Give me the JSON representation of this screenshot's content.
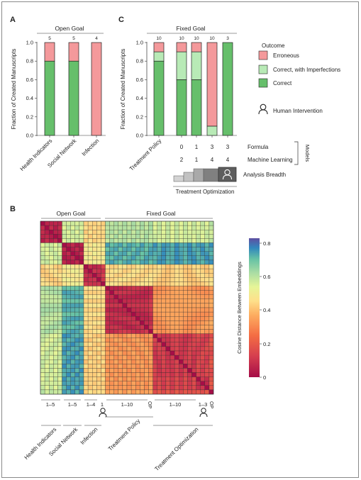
{
  "colors": {
    "erroneous": "#f4999b",
    "imperfect": "#b8eab6",
    "correct": "#66bf6b",
    "bar_outline": "#222222",
    "model_gray_light": "#d3d3d3",
    "model_gray_mid": "#a9a9a9",
    "model_gray_dark": "#808080",
    "model_gray_darkest": "#5e5e5e"
  },
  "panels": {
    "A": {
      "letter": "A",
      "title": "Open Goal"
    },
    "B": {
      "letter": "B",
      "top_left": "Open Goal",
      "top_right": "Fixed Goal"
    },
    "C": {
      "letter": "C",
      "title": "Fixed Goal"
    }
  },
  "legend": {
    "title": "Outcome",
    "items": [
      "Erroneous",
      "Correct, with Imperfections",
      "Correct"
    ],
    "human": "Human Intervention"
  },
  "models": {
    "formula_label": "Formula",
    "ml_label": "Machine Learning",
    "bracket_label": "Models",
    "breadth_label": "Analysis Breadth",
    "optimization_label": "Treatment Optimization"
  },
  "heatmap_labels": {
    "ranges": [
      "1–5",
      "1–5",
      "1–4",
      "1",
      "1–10",
      "OP",
      "1–10",
      "1–3",
      "OP"
    ],
    "groups": [
      "Health Indicators",
      "Social Network",
      "Infection",
      "Treatment Policy",
      "Treatment Optimization"
    ]
  },
  "colorbar": {
    "label": "Cosine Distance Between Embeddings",
    "ticks": [
      "0.8",
      "0.6",
      "0.4",
      "0.2",
      "0"
    ]
  },
  "chart_data": [
    {
      "type": "bar",
      "panel": "A",
      "title": "Open Goal",
      "ylabel": "Fraction of Created Manuscripts",
      "ylim": [
        0,
        1
      ],
      "yticks": [
        "0.0",
        "0.2",
        "0.4",
        "0.6",
        "0.8",
        "1.0"
      ],
      "categories": [
        "Health Indicators",
        "Social Network",
        "Infection"
      ],
      "counts": [
        "5",
        "5",
        "4"
      ],
      "series": [
        {
          "name": "Correct",
          "values": [
            0.8,
            0.8,
            0.0
          ]
        },
        {
          "name": "Correct, with Imperfections",
          "values": [
            0.0,
            0.0,
            0.0
          ]
        },
        {
          "name": "Erroneous",
          "values": [
            0.2,
            0.2,
            1.0
          ]
        }
      ]
    },
    {
      "type": "bar",
      "panel": "C",
      "title": "Fixed Goal",
      "ylabel": "Fraction of Created Manuscripts",
      "ylim": [
        0,
        1
      ],
      "yticks": [
        "0.0",
        "0.2",
        "0.4",
        "0.6",
        "0.8",
        "1.0"
      ],
      "categories": [
        "Treatment Policy",
        "",
        "",
        "",
        ""
      ],
      "counts": [
        "10",
        "10",
        "10",
        "10",
        "3"
      ],
      "formula": [
        "",
        "0",
        "1",
        "3",
        "3"
      ],
      "machine_learning": [
        "",
        "2",
        "1",
        "4",
        "4"
      ],
      "human_intervention": [
        false,
        false,
        false,
        false,
        true
      ],
      "series": [
        {
          "name": "Correct",
          "values": [
            0.8,
            0.6,
            0.6,
            0.0,
            1.0
          ]
        },
        {
          "name": "Correct, with Imperfections",
          "values": [
            0.1,
            0.3,
            0.3,
            0.1,
            0.0
          ]
        },
        {
          "name": "Erroneous",
          "values": [
            0.1,
            0.1,
            0.1,
            0.9,
            0.0
          ]
        }
      ]
    },
    {
      "type": "heatmap",
      "panel": "B",
      "colorbar_range": [
        0,
        0.85
      ],
      "groups": [
        {
          "name": "Health Indicators",
          "size": 5
        },
        {
          "name": "Social Network",
          "size": 5
        },
        {
          "name": "Infection",
          "size": 4
        },
        {
          "name": "Infection (human intervention)",
          "size": 1
        },
        {
          "name": "Treatment Policy",
          "size": 10
        },
        {
          "name": "Treatment Policy OP",
          "size": 1
        },
        {
          "name": "Treatment Optimization",
          "size": 10
        },
        {
          "name": "Treatment Optimization (human intervention)",
          "size": 3
        },
        {
          "name": "Treatment Optimization OP",
          "size": 1
        }
      ],
      "block_values": [
        [
          0.06,
          0.58,
          0.45,
          0.45,
          0.62,
          0.62,
          0.58,
          0.58,
          0.6
        ],
        [
          0.58,
          0.05,
          0.5,
          0.5,
          0.74,
          0.74,
          0.76,
          0.76,
          0.76
        ],
        [
          0.45,
          0.5,
          0.08,
          0.12,
          0.46,
          0.46,
          0.44,
          0.44,
          0.46
        ],
        [
          0.45,
          0.5,
          0.12,
          0.0,
          0.46,
          0.46,
          0.44,
          0.44,
          0.46
        ],
        [
          0.62,
          0.74,
          0.46,
          0.46,
          0.08,
          0.1,
          0.34,
          0.34,
          0.36
        ],
        [
          0.62,
          0.74,
          0.46,
          0.46,
          0.1,
          0.0,
          0.34,
          0.34,
          0.36
        ],
        [
          0.58,
          0.76,
          0.44,
          0.44,
          0.34,
          0.34,
          0.12,
          0.14,
          0.18
        ],
        [
          0.58,
          0.76,
          0.44,
          0.44,
          0.34,
          0.34,
          0.14,
          0.1,
          0.18
        ],
        [
          0.6,
          0.76,
          0.46,
          0.46,
          0.36,
          0.36,
          0.18,
          0.18,
          0.0
        ]
      ]
    }
  ]
}
